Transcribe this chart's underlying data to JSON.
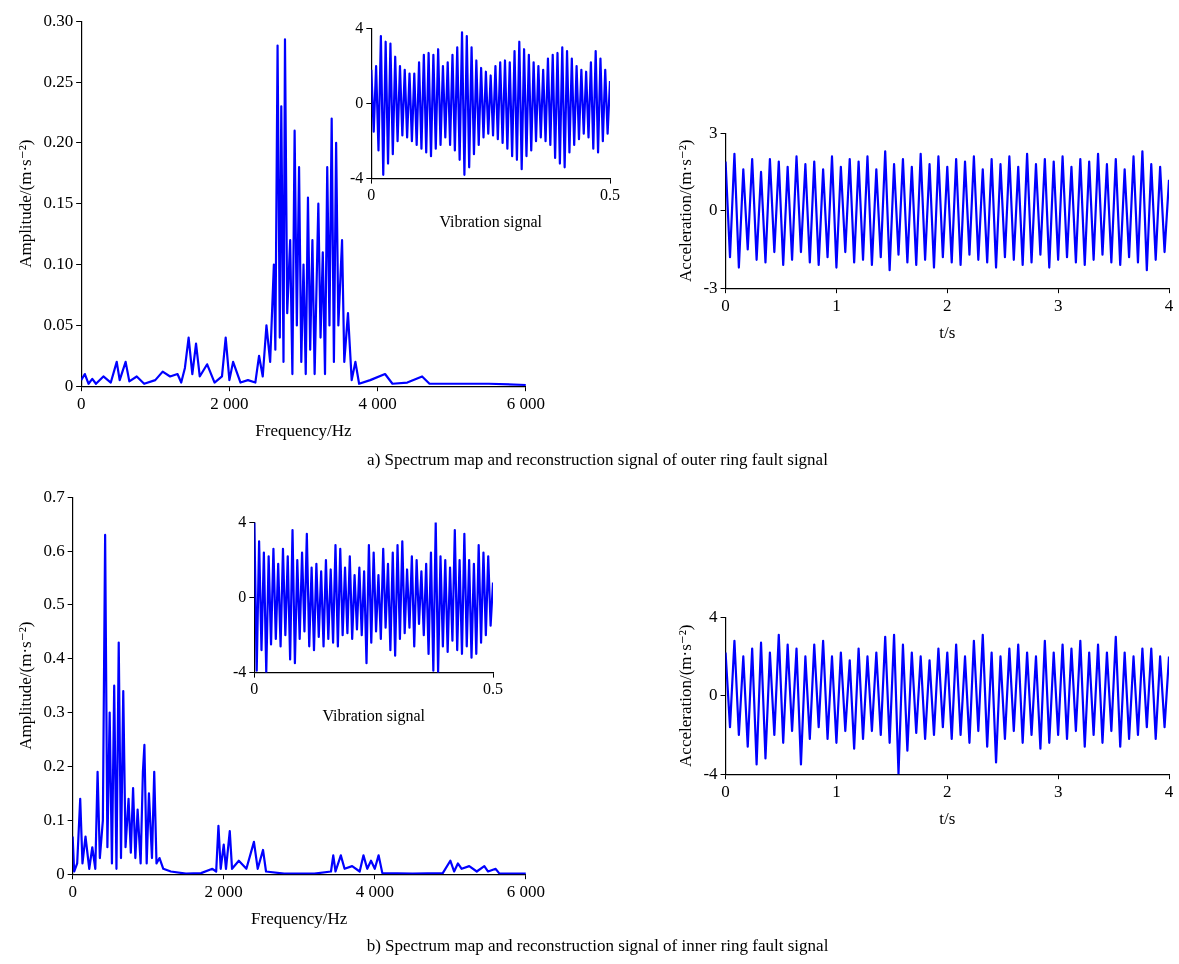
{
  "chart_data": [
    {
      "type": "line",
      "xlabel": "Frequency/Hz",
      "ylabel": "Amplitude/(m·s⁻²)",
      "annotations": [
        "a) Spectrum map and reconstruction signal of outer ring fault signal"
      ],
      "xlim": [
        0,
        6000
      ],
      "xticks": [
        0,
        {
          "value": 2000,
          "label": "2 000"
        },
        {
          "value": 4000,
          "label": "4 000"
        },
        {
          "value": 6000,
          "label": "6 000"
        }
      ],
      "ylim": [
        0,
        0.3
      ],
      "yticks": [
        {
          "value": 0,
          "label": "0"
        },
        {
          "value": 0.05,
          "label": "0.05"
        },
        {
          "value": 0.1,
          "label": "0.10"
        },
        {
          "value": 0.15,
          "label": "0.15"
        },
        {
          "value": 0.2,
          "label": "0.20"
        },
        {
          "value": 0.25,
          "label": "0.25"
        },
        {
          "value": 0.3,
          "label": "0.30"
        }
      ],
      "series": [
        {
          "color": "#0000ff",
          "x": [
            0,
            50,
            100,
            150,
            200,
            300,
            400,
            480,
            520,
            600,
            650,
            750,
            850,
            1000,
            1100,
            1200,
            1300,
            1350,
            1400,
            1450,
            1500,
            1550,
            1600,
            1700,
            1800,
            1900,
            1950,
            2000,
            2050,
            2150,
            2250,
            2350,
            2400,
            2450,
            2500,
            2550,
            2600,
            2620,
            2650,
            2680,
            2700,
            2730,
            2750,
            2780,
            2820,
            2850,
            2880,
            2910,
            2940,
            2970,
            3000,
            3030,
            3060,
            3090,
            3120,
            3150,
            3200,
            3230,
            3260,
            3290,
            3320,
            3350,
            3380,
            3410,
            3440,
            3470,
            3520,
            3550,
            3600,
            3650,
            3700,
            3750,
            3900,
            4100,
            4200,
            4400,
            4600,
            4700,
            5000,
            5500,
            6000
          ],
          "values": [
            0.005,
            0.01,
            0.002,
            0.006,
            0.002,
            0.008,
            0.003,
            0.02,
            0.005,
            0.02,
            0.004,
            0.008,
            0.002,
            0.005,
            0.012,
            0.008,
            0.01,
            0.003,
            0.015,
            0.04,
            0.01,
            0.035,
            0.008,
            0.018,
            0.003,
            0.008,
            0.04,
            0.005,
            0.02,
            0.003,
            0.005,
            0.003,
            0.025,
            0.008,
            0.05,
            0.02,
            0.1,
            0.03,
            0.28,
            0.04,
            0.23,
            0.02,
            0.285,
            0.06,
            0.12,
            0.01,
            0.21,
            0.05,
            0.18,
            0.02,
            0.1,
            0.01,
            0.155,
            0.03,
            0.12,
            0.01,
            0.15,
            0.04,
            0.11,
            0.01,
            0.18,
            0.05,
            0.22,
            0.02,
            0.2,
            0.05,
            0.12,
            0.02,
            0.06,
            0.005,
            0.02,
            0.002,
            0.005,
            0.01,
            0.002,
            0.003,
            0.008,
            0.002,
            0.002,
            0.002,
            0.001
          ]
        }
      ]
    },
    {
      "type": "line",
      "xlabel": "Vibration signal",
      "xlim": [
        0,
        0.5
      ],
      "xticks": [
        0,
        0.5
      ],
      "ylim": [
        -4,
        4
      ],
      "yticks": [
        -4,
        0,
        4
      ],
      "series": [
        {
          "color": "#0000ff",
          "x": [
            0,
            0.005,
            0.01,
            0.015,
            0.02,
            0.025,
            0.03,
            0.035,
            0.04,
            0.045,
            0.05,
            0.055,
            0.06,
            0.065,
            0.07,
            0.075,
            0.08,
            0.085,
            0.09,
            0.095,
            0.1,
            0.105,
            0.11,
            0.115,
            0.12,
            0.125,
            0.13,
            0.135,
            0.14,
            0.145,
            0.15,
            0.155,
            0.16,
            0.165,
            0.17,
            0.175,
            0.18,
            0.185,
            0.19,
            0.195,
            0.2,
            0.205,
            0.21,
            0.215,
            0.22,
            0.225,
            0.23,
            0.235,
            0.24,
            0.245,
            0.25,
            0.255,
            0.26,
            0.265,
            0.27,
            0.275,
            0.28,
            0.285,
            0.29,
            0.295,
            0.3,
            0.305,
            0.31,
            0.315,
            0.32,
            0.325,
            0.33,
            0.335,
            0.34,
            0.345,
            0.35,
            0.355,
            0.36,
            0.365,
            0.37,
            0.375,
            0.38,
            0.385,
            0.39,
            0.395,
            0.4,
            0.405,
            0.41,
            0.415,
            0.42,
            0.425,
            0.43,
            0.435,
            0.44,
            0.445,
            0.45,
            0.455,
            0.46,
            0.465,
            0.47,
            0.475,
            0.48,
            0.485,
            0.49,
            0.495,
            0.5
          ],
          "values": [
            1.8,
            -1.5,
            2.0,
            -2.5,
            3.6,
            -3.8,
            3.3,
            -3.2,
            3.2,
            -2.7,
            2.5,
            -2.0,
            2.0,
            -1.7,
            1.8,
            -1.8,
            1.6,
            -2.0,
            1.6,
            -2.2,
            2.2,
            -2.4,
            2.6,
            -2.6,
            2.7,
            -2.8,
            2.6,
            -2.4,
            2.9,
            -2.2,
            2.0,
            -1.8,
            2.2,
            -2.2,
            2.6,
            -2.5,
            3.0,
            -3.0,
            3.8,
            -3.8,
            3.6,
            -3.4,
            3.0,
            -2.7,
            2.3,
            -2.2,
            1.9,
            -1.8,
            1.7,
            -1.6,
            1.5,
            -1.7,
            2.0,
            -1.9,
            2.2,
            -2.1,
            2.3,
            -2.4,
            2.2,
            -2.8,
            2.8,
            -3.0,
            3.3,
            -3.5,
            2.9,
            -2.8,
            2.6,
            -2.5,
            2.2,
            -2.0,
            2.0,
            -1.8,
            1.8,
            -2.0,
            2.4,
            -2.2,
            2.6,
            -2.9,
            2.7,
            -3.2,
            3.0,
            -3.4,
            2.8,
            -2.6,
            2.4,
            -2.2,
            2.0,
            -1.9,
            1.8,
            -1.6,
            1.7,
            -1.8,
            2.2,
            -2.4,
            2.8,
            -2.6,
            2.4,
            -2.0,
            1.8,
            -1.6,
            1.2
          ]
        }
      ]
    },
    {
      "type": "line",
      "xlabel": "t/s",
      "ylabel": "Acceleration/(m·s⁻²)",
      "xlim": [
        0,
        4
      ],
      "xticks": [
        0,
        1,
        2,
        3,
        4
      ],
      "ylim": [
        -3,
        3
      ],
      "yticks": [
        -3,
        0,
        3
      ],
      "series": [
        {
          "color": "#0000ff",
          "x": [
            0,
            0.04,
            0.08,
            0.12,
            0.16,
            0.2,
            0.24,
            0.28,
            0.32,
            0.36,
            0.4,
            0.44,
            0.48,
            0.52,
            0.56,
            0.6,
            0.64,
            0.68,
            0.72,
            0.76,
            0.8,
            0.84,
            0.88,
            0.92,
            0.96,
            1,
            1.04,
            1.08,
            1.12,
            1.16,
            1.2,
            1.24,
            1.28,
            1.32,
            1.36,
            1.4,
            1.44,
            1.48,
            1.52,
            1.56,
            1.6,
            1.64,
            1.68,
            1.72,
            1.76,
            1.8,
            1.84,
            1.88,
            1.92,
            1.96,
            2,
            2.04,
            2.08,
            2.12,
            2.16,
            2.2,
            2.24,
            2.28,
            2.32,
            2.36,
            2.4,
            2.44,
            2.48,
            2.52,
            2.56,
            2.6,
            2.64,
            2.68,
            2.72,
            2.76,
            2.8,
            2.84,
            2.88,
            2.92,
            2.96,
            3,
            3.04,
            3.08,
            3.12,
            3.16,
            3.2,
            3.24,
            3.28,
            3.32,
            3.36,
            3.4,
            3.44,
            3.48,
            3.52,
            3.56,
            3.6,
            3.64,
            3.68,
            3.72,
            3.76,
            3.8,
            3.84,
            3.88,
            3.92,
            3.96,
            4
          ],
          "values": [
            1.9,
            -1.8,
            2.2,
            -2.2,
            1.6,
            -1.5,
            2.0,
            -1.9,
            1.5,
            -2.0,
            2.0,
            -1.6,
            1.9,
            -2.1,
            1.7,
            -1.9,
            2.1,
            -1.6,
            1.8,
            -2.0,
            1.9,
            -2.1,
            1.6,
            -1.8,
            2.1,
            -2.2,
            1.7,
            -1.6,
            2.0,
            -2.0,
            1.9,
            -1.9,
            2.1,
            -2.1,
            1.6,
            -1.8,
            2.3,
            -2.3,
            1.8,
            -1.7,
            2.0,
            -2.0,
            1.7,
            -2.1,
            2.2,
            -1.9,
            1.8,
            -2.2,
            2.1,
            -1.8,
            1.7,
            -2.0,
            2.0,
            -2.1,
            1.9,
            -1.7,
            2.1,
            -1.9,
            1.6,
            -2.0,
            2.0,
            -2.2,
            1.8,
            -1.8,
            2.1,
            -1.9,
            1.7,
            -2.1,
            2.2,
            -2.0,
            1.8,
            -1.7,
            2.0,
            -2.2,
            1.9,
            -1.9,
            2.1,
            -1.8,
            1.7,
            -2.0,
            2.0,
            -2.1,
            1.9,
            -1.9,
            2.2,
            -1.7,
            1.8,
            -2.0,
            2.0,
            -2.1,
            1.6,
            -1.8,
            2.1,
            -2.0,
            2.3,
            -2.3,
            1.8,
            -1.9,
            1.7,
            -1.6,
            1.2
          ]
        }
      ]
    },
    {
      "type": "line",
      "xlabel": "Frequency/Hz",
      "ylabel": "Amplitude/(m·s⁻²)",
      "annotations": [
        "b) Spectrum map and reconstruction signal of inner ring fault signal"
      ],
      "xlim": [
        0,
        6000
      ],
      "xticks": [
        0,
        {
          "value": 2000,
          "label": "2 000"
        },
        {
          "value": 4000,
          "label": "4 000"
        },
        {
          "value": 6000,
          "label": "6 000"
        }
      ],
      "ylim": [
        0,
        0.7
      ],
      "yticks": [
        0,
        0.1,
        0.2,
        0.3,
        0.4,
        0.5,
        0.6,
        0.7
      ],
      "series": [
        {
          "color": "#0000ff",
          "x": [
            0,
            20,
            60,
            100,
            130,
            170,
            220,
            260,
            300,
            330,
            360,
            400,
            430,
            460,
            490,
            520,
            550,
            580,
            610,
            640,
            670,
            700,
            740,
            770,
            800,
            830,
            860,
            900,
            930,
            950,
            980,
            1010,
            1050,
            1080,
            1110,
            1150,
            1200,
            1300,
            1500,
            1700,
            1850,
            1900,
            1930,
            1960,
            2000,
            2030,
            2080,
            2110,
            2200,
            2300,
            2400,
            2450,
            2520,
            2560,
            2800,
            3200,
            3420,
            3450,
            3480,
            3550,
            3600,
            3700,
            3800,
            3850,
            3900,
            3950,
            4000,
            4050,
            4100,
            4500,
            4900,
            5000,
            5050,
            5100,
            5150,
            5250,
            5350,
            5450,
            5500,
            5600,
            5650,
            6000
          ],
          "values": [
            0.07,
            0.005,
            0.02,
            0.14,
            0.02,
            0.07,
            0.01,
            0.05,
            0.01,
            0.19,
            0.03,
            0.1,
            0.63,
            0.05,
            0.3,
            0.02,
            0.35,
            0.01,
            0.43,
            0.03,
            0.34,
            0.05,
            0.14,
            0.04,
            0.16,
            0.03,
            0.12,
            0.02,
            0.19,
            0.24,
            0.02,
            0.15,
            0.03,
            0.19,
            0.02,
            0.03,
            0.01,
            0.005,
            0.001,
            0.002,
            0.01,
            0.005,
            0.09,
            0.01,
            0.055,
            0.01,
            0.08,
            0.01,
            0.025,
            0.01,
            0.06,
            0.01,
            0.045,
            0.005,
            0.001,
            0.001,
            0.005,
            0.035,
            0.005,
            0.035,
            0.01,
            0.015,
            0.005,
            0.035,
            0.01,
            0.025,
            0.01,
            0.035,
            0.002,
            0.001,
            0.002,
            0.025,
            0.005,
            0.02,
            0.01,
            0.015,
            0.005,
            0.015,
            0.005,
            0.01,
            0.001,
            0.001
          ]
        }
      ]
    },
    {
      "type": "line",
      "xlabel": "Vibration signal",
      "xlim": [
        0,
        0.5
      ],
      "xticks": [
        0,
        0.5
      ],
      "ylim": [
        -4,
        4
      ],
      "yticks": [
        -4,
        0,
        4
      ],
      "series": [
        {
          "color": "#0000ff",
          "x": [
            0,
            0.005,
            0.01,
            0.015,
            0.02,
            0.025,
            0.03,
            0.035,
            0.04,
            0.045,
            0.05,
            0.055,
            0.06,
            0.065,
            0.07,
            0.075,
            0.08,
            0.085,
            0.09,
            0.095,
            0.1,
            0.105,
            0.11,
            0.115,
            0.12,
            0.125,
            0.13,
            0.135,
            0.14,
            0.145,
            0.15,
            0.155,
            0.16,
            0.165,
            0.17,
            0.175,
            0.18,
            0.185,
            0.19,
            0.195,
            0.2,
            0.205,
            0.21,
            0.215,
            0.22,
            0.225,
            0.23,
            0.235,
            0.24,
            0.245,
            0.25,
            0.255,
            0.26,
            0.265,
            0.27,
            0.275,
            0.28,
            0.285,
            0.29,
            0.295,
            0.3,
            0.305,
            0.31,
            0.315,
            0.32,
            0.325,
            0.33,
            0.335,
            0.34,
            0.345,
            0.35,
            0.355,
            0.36,
            0.365,
            0.37,
            0.375,
            0.38,
            0.385,
            0.39,
            0.395,
            0.4,
            0.405,
            0.41,
            0.415,
            0.42,
            0.425,
            0.43,
            0.435,
            0.44,
            0.445,
            0.45,
            0.455,
            0.46,
            0.465,
            0.47,
            0.475,
            0.48,
            0.485,
            0.49,
            0.495,
            0.5
          ],
          "values": [
            4.0,
            -3.9,
            3.0,
            -2.8,
            2.4,
            -4.0,
            2.2,
            -2.5,
            2.6,
            -2.2,
            1.8,
            -2.6,
            2.6,
            -2.0,
            2.2,
            -3.3,
            3.6,
            -3.5,
            2.0,
            -2.2,
            2.4,
            -1.8,
            3.4,
            -2.6,
            1.6,
            -2.8,
            1.8,
            -2.1,
            1.4,
            -2.6,
            2.0,
            -2.2,
            1.5,
            -2.4,
            2.8,
            -2.6,
            2.6,
            -2.0,
            1.6,
            -1.9,
            2.2,
            -2.2,
            1.2,
            -1.7,
            1.6,
            -2.0,
            1.4,
            -3.5,
            2.8,
            -2.4,
            2.4,
            -1.8,
            1.2,
            -2.2,
            2.6,
            -1.6,
            1.8,
            -2.8,
            2.4,
            -3.1,
            2.8,
            -2.2,
            3.0,
            -1.9,
            1.5,
            -1.6,
            2.2,
            -2.6,
            2.0,
            -1.4,
            1.4,
            -2.0,
            1.8,
            -3.0,
            2.4,
            -3.9,
            4.0,
            -4.0,
            2.2,
            -2.6,
            2.0,
            -2.9,
            1.6,
            -2.3,
            3.6,
            -2.8,
            2.0,
            -3.0,
            3.4,
            -2.6,
            2.0,
            -3.2,
            1.8,
            -3.0,
            2.8,
            -2.4,
            2.4,
            -2.0,
            2.2,
            -1.5,
            0.8
          ]
        }
      ]
    },
    {
      "type": "line",
      "xlabel": "t/s",
      "ylabel": "Acceleration/(m·s⁻²)",
      "xlim": [
        0,
        4
      ],
      "xticks": [
        0,
        1,
        2,
        3,
        4
      ],
      "ylim": [
        -4,
        4
      ],
      "yticks": [
        -4,
        0,
        4
      ],
      "series": [
        {
          "color": "#0000ff",
          "x": [
            0,
            0.04,
            0.08,
            0.12,
            0.16,
            0.2,
            0.24,
            0.28,
            0.32,
            0.36,
            0.4,
            0.44,
            0.48,
            0.52,
            0.56,
            0.6,
            0.64,
            0.68,
            0.72,
            0.76,
            0.8,
            0.84,
            0.88,
            0.92,
            0.96,
            1,
            1.04,
            1.08,
            1.12,
            1.16,
            1.2,
            1.24,
            1.28,
            1.32,
            1.36,
            1.4,
            1.44,
            1.48,
            1.52,
            1.56,
            1.6,
            1.64,
            1.68,
            1.72,
            1.76,
            1.8,
            1.84,
            1.88,
            1.92,
            1.96,
            2,
            2.04,
            2.08,
            2.12,
            2.16,
            2.2,
            2.24,
            2.28,
            2.32,
            2.36,
            2.4,
            2.44,
            2.48,
            2.52,
            2.56,
            2.6,
            2.64,
            2.68,
            2.72,
            2.76,
            2.8,
            2.84,
            2.88,
            2.92,
            2.96,
            3,
            3.04,
            3.08,
            3.12,
            3.16,
            3.2,
            3.24,
            3.28,
            3.32,
            3.36,
            3.4,
            3.44,
            3.48,
            3.52,
            3.56,
            3.6,
            3.64,
            3.68,
            3.72,
            3.76,
            3.8,
            3.84,
            3.88,
            3.92,
            3.96,
            4
          ],
          "values": [
            2.2,
            -1.6,
            2.8,
            -2.0,
            2.0,
            -2.6,
            2.4,
            -3.5,
            2.7,
            -3.2,
            2.2,
            -2.0,
            3.1,
            -2.4,
            2.6,
            -1.8,
            2.4,
            -3.5,
            2.0,
            -2.2,
            2.6,
            -1.6,
            2.8,
            -2.2,
            2.0,
            -2.4,
            2.2,
            -1.8,
            1.8,
            -2.7,
            2.4,
            -2.2,
            2.0,
            -1.8,
            2.2,
            -2.0,
            3.0,
            -2.4,
            3.1,
            -4.0,
            2.6,
            -2.8,
            2.2,
            -1.9,
            2.0,
            -2.2,
            1.8,
            -2.0,
            2.4,
            -1.6,
            2.2,
            -2.2,
            2.6,
            -2.0,
            2.0,
            -2.4,
            2.8,
            -1.8,
            3.1,
            -2.6,
            2.2,
            -3.4,
            2.0,
            -2.2,
            2.4,
            -1.8,
            2.6,
            -2.4,
            2.2,
            -2.0,
            2.0,
            -2.7,
            2.8,
            -2.4,
            2.2,
            -2.0,
            2.6,
            -2.2,
            2.4,
            -1.8,
            2.8,
            -2.6,
            2.2,
            -2.0,
            2.6,
            -2.4,
            2.2,
            -1.8,
            3.0,
            -2.6,
            2.2,
            -2.2,
            2.0,
            -2.0,
            2.4,
            -1.6,
            2.4,
            -2.2,
            2.0,
            -1.6,
            2.0
          ]
        }
      ]
    }
  ]
}
